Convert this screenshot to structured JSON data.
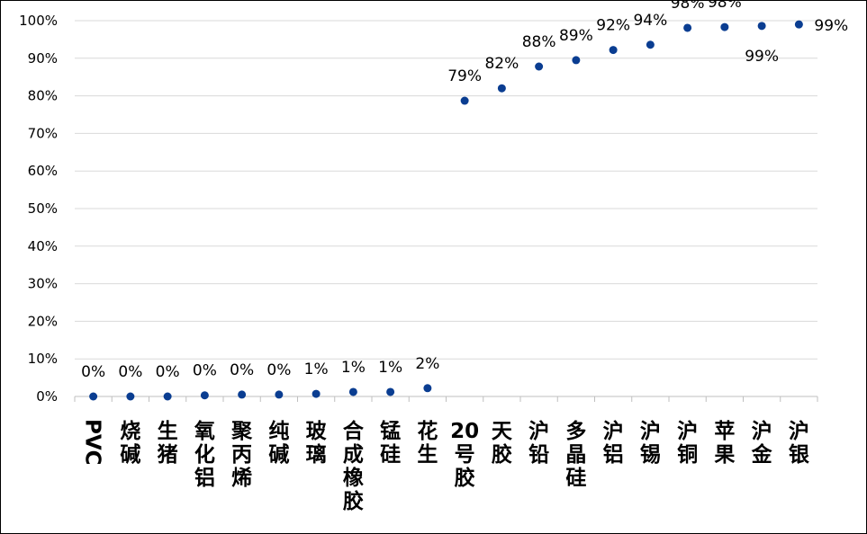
{
  "chart_data": {
    "type": "scatter",
    "categories": [
      "PVC",
      "烧碱",
      "生猪",
      "氧化铝",
      "聚丙烯",
      "纯碱",
      "玻璃",
      "合成橡胶",
      "锰硅",
      "花生",
      "20号胶",
      "天胶",
      "沪铅",
      "多晶硅",
      "沪铝",
      "沪锡",
      "沪铜",
      "苹果",
      "沪金",
      "沪银"
    ],
    "values": [
      0.0,
      0.0,
      0.0,
      0.3,
      0.5,
      0.5,
      0.7,
      1.2,
      1.2,
      2.2,
      78.7,
      82.0,
      87.8,
      89.5,
      92.2,
      93.6,
      98.1,
      98.3,
      98.6,
      99.0
    ],
    "data_labels": [
      "0%",
      "0%",
      "0%",
      "0%",
      "0%",
      "0%",
      "1%",
      "1%",
      "1%",
      "2%",
      "79%",
      "82%",
      "88%",
      "89%",
      "92%",
      "94%",
      "98%",
      "98%",
      "99%",
      "99%"
    ],
    "y_ticks": [
      "0%",
      "10%",
      "20%",
      "30%",
      "40%",
      "50%",
      "60%",
      "70%",
      "80%",
      "90%",
      "100%"
    ],
    "ylim": [
      0,
      100
    ],
    "grid": true,
    "marker_color": "#0A3D91",
    "title": "",
    "xlabel": "",
    "ylabel": ""
  }
}
